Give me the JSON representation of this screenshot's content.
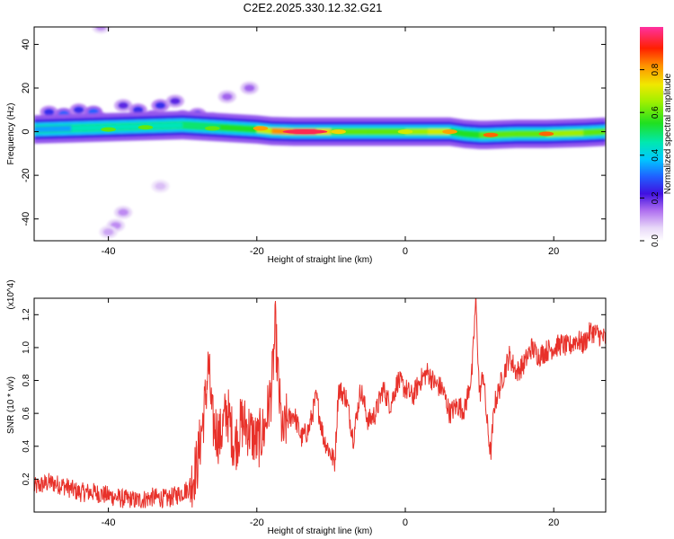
{
  "title": "C2E2.2025.330.12.32.G21",
  "chart_data": [
    {
      "type": "heatmap",
      "title": "C2E2.2025.330.12.32.G21",
      "xlabel": "Height of straight line (km)",
      "ylabel": "Frequency (Hz)",
      "xlim": [
        -50,
        27
      ],
      "ylim": [
        -50,
        48
      ],
      "xticks": [
        -40,
        -20,
        0,
        20
      ],
      "xtick_labels": [
        "-40",
        "-20",
        "0",
        "20"
      ],
      "yticks": [
        -40,
        -20,
        0,
        20,
        40
      ],
      "ytick_labels": [
        "-40",
        "-20",
        "0",
        "20",
        "40"
      ],
      "colorbar": {
        "label": "Normalized spectral amplitude",
        "range": [
          0,
          1
        ],
        "ticks": [
          0.0,
          0.2,
          0.4,
          0.6,
          0.8
        ],
        "tick_labels": [
          "0.0",
          "0.2",
          "0.4",
          "0.6",
          "0.8"
        ]
      },
      "ridge": [
        {
          "x": -50,
          "f": 1.0,
          "amp": 0.35
        },
        {
          "x": -45,
          "f": 1.5,
          "amp": 0.45
        },
        {
          "x": -40,
          "f": 2.0,
          "amp": 0.45
        },
        {
          "x": -35,
          "f": 2.5,
          "amp": 0.45
        },
        {
          "x": -30,
          "f": 3.0,
          "amp": 0.5
        },
        {
          "x": -25,
          "f": 2.0,
          "amp": 0.55
        },
        {
          "x": -20,
          "f": 1.0,
          "amp": 0.7
        },
        {
          "x": -18,
          "f": 0.3,
          "amp": 0.82
        },
        {
          "x": -15,
          "f": 0.0,
          "amp": 0.95
        },
        {
          "x": -12,
          "f": 0.0,
          "amp": 0.95
        },
        {
          "x": -10,
          "f": 0.0,
          "amp": 0.75
        },
        {
          "x": -5,
          "f": 0.0,
          "amp": 0.6
        },
        {
          "x": 0,
          "f": 0.0,
          "amp": 0.65
        },
        {
          "x": 3,
          "f": 0.0,
          "amp": 0.7
        },
        {
          "x": 6,
          "f": 0.0,
          "amp": 0.8
        },
        {
          "x": 8,
          "f": -1.0,
          "amp": 0.55
        },
        {
          "x": 10,
          "f": -1.5,
          "amp": 0.6
        },
        {
          "x": 11,
          "f": -1.5,
          "amp": 0.85
        },
        {
          "x": 15,
          "f": -1.0,
          "amp": 0.6
        },
        {
          "x": 19,
          "f": -1.0,
          "amp": 0.85
        },
        {
          "x": 24,
          "f": -0.5,
          "amp": 0.65
        },
        {
          "x": 27,
          "f": 0.0,
          "amp": 0.6
        }
      ],
      "hot_spots": [
        {
          "x": -13.5,
          "f": 0.0,
          "amp": 0.95
        },
        {
          "x": -19.5,
          "f": 1.5,
          "amp": 0.8
        },
        {
          "x": -9.0,
          "f": 0.0,
          "amp": 0.75
        },
        {
          "x": 6.0,
          "f": 0.0,
          "amp": 0.8
        },
        {
          "x": 11.5,
          "f": -1.5,
          "amp": 0.85
        },
        {
          "x": 19.0,
          "f": -1.0,
          "amp": 0.85
        },
        {
          "x": 0.0,
          "f": 0.0,
          "amp": 0.7
        },
        {
          "x": -40.0,
          "f": 1.0,
          "amp": 0.6
        },
        {
          "x": -35.0,
          "f": 2.0,
          "amp": 0.6
        },
        {
          "x": -26.0,
          "f": 1.5,
          "amp": 0.6
        }
      ],
      "scatter_blobs": [
        {
          "x": -48,
          "f": 9,
          "amp": 0.25
        },
        {
          "x": -46,
          "f": 8,
          "amp": 0.3
        },
        {
          "x": -44,
          "f": 10,
          "amp": 0.25
        },
        {
          "x": -42,
          "f": 9,
          "amp": 0.3
        },
        {
          "x": -41,
          "f": 6,
          "amp": 0.3
        },
        {
          "x": -38,
          "f": 12,
          "amp": 0.2
        },
        {
          "x": -36,
          "f": 10,
          "amp": 0.25
        },
        {
          "x": -34,
          "f": 7,
          "amp": 0.3
        },
        {
          "x": -33,
          "f": 12,
          "amp": 0.25
        },
        {
          "x": -31,
          "f": 14,
          "amp": 0.2
        },
        {
          "x": -30,
          "f": 7,
          "amp": 0.3
        },
        {
          "x": -28,
          "f": 8,
          "amp": 0.25
        },
        {
          "x": -26,
          "f": 6,
          "amp": 0.25
        },
        {
          "x": -24,
          "f": 16,
          "amp": 0.15
        },
        {
          "x": -21,
          "f": 20,
          "amp": 0.15
        },
        {
          "x": -38,
          "f": -37,
          "amp": 0.12
        },
        {
          "x": -39,
          "f": -43,
          "amp": 0.12
        },
        {
          "x": -40,
          "f": -46,
          "amp": 0.1
        },
        {
          "x": -33,
          "f": -25,
          "amp": 0.08
        },
        {
          "x": -41,
          "f": 48,
          "amp": 0.12
        }
      ]
    },
    {
      "type": "line",
      "xlabel": "Height of straight line (km)",
      "ylabel": "SNR (10 * v/v)",
      "y_multiplier": "(x10^4)",
      "xlim": [
        -50,
        27
      ],
      "ylim": [
        0.0,
        1.3
      ],
      "xticks": [
        -40,
        -20,
        0,
        20
      ],
      "xtick_labels": [
        "-40",
        "-20",
        "0",
        "20"
      ],
      "yticks": [
        0.2,
        0.4,
        0.6,
        0.8,
        1.0,
        1.2
      ],
      "ytick_labels": [
        "0.2",
        "0.4",
        "0.6",
        "0.8",
        "1.0",
        "1.2"
      ],
      "color": "#e8312a",
      "x": [
        -50,
        -48,
        -46,
        -44,
        -42,
        -40,
        -38,
        -36,
        -34,
        -32,
        -30,
        -29,
        -28,
        -27,
        -26.5,
        -26,
        -25,
        -24,
        -23,
        -22,
        -21,
        -20,
        -19,
        -18,
        -17.5,
        -17,
        -16.5,
        -16,
        -15,
        -14,
        -13,
        -12,
        -11,
        -10,
        -9.5,
        -9,
        -8,
        -7,
        -6,
        -5,
        -4,
        -3,
        -2,
        -1,
        0,
        1,
        2,
        3,
        4,
        5,
        6,
        7,
        8,
        9,
        9.5,
        10,
        10.5,
        11,
        11.5,
        12,
        13,
        14,
        15,
        16,
        17,
        18,
        19,
        20,
        21,
        22,
        23,
        24,
        25,
        26,
        27
      ],
      "y": [
        0.15,
        0.18,
        0.16,
        0.12,
        0.12,
        0.1,
        0.08,
        0.07,
        0.09,
        0.08,
        0.12,
        0.15,
        0.3,
        0.65,
        0.9,
        0.55,
        0.45,
        0.62,
        0.4,
        0.55,
        0.5,
        0.42,
        0.5,
        0.75,
        1.12,
        0.7,
        0.45,
        0.55,
        0.6,
        0.45,
        0.5,
        0.7,
        0.45,
        0.35,
        0.3,
        0.75,
        0.7,
        0.45,
        0.75,
        0.55,
        0.6,
        0.75,
        0.65,
        0.8,
        0.75,
        0.7,
        0.8,
        0.85,
        0.78,
        0.75,
        0.6,
        0.65,
        0.62,
        0.85,
        1.3,
        0.7,
        0.85,
        0.55,
        0.35,
        0.65,
        0.8,
        0.95,
        0.85,
        0.9,
        1.0,
        0.95,
        0.98,
        1.0,
        1.02,
        1.0,
        1.05,
        1.02,
        1.1,
        1.08,
        1.05
      ]
    }
  ]
}
